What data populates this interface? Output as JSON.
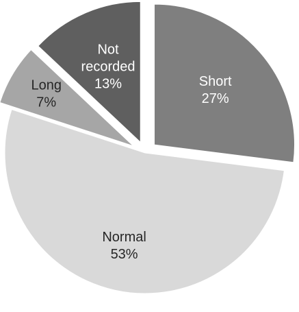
{
  "chart_data": {
    "type": "pie",
    "title": "",
    "exploded": true,
    "start_angle_deg": 0,
    "direction": "clockwise",
    "slices": [
      {
        "label": "Short",
        "pct_label": "27%",
        "value": 27,
        "color": "#7f7f7f",
        "text_color": "#ffffff"
      },
      {
        "label": "Normal",
        "pct_label": "53%",
        "value": 53,
        "color": "#d9d9d9",
        "text_color": "#262626"
      },
      {
        "label": "Long",
        "pct_label": "7%",
        "value": 7,
        "color": "#a6a6a6",
        "text_color": "#262626"
      },
      {
        "label": "Not recorded",
        "pct_label": "13%",
        "value": 13,
        "color": "#5f5f5f",
        "text_color": "#ffffff"
      }
    ]
  }
}
